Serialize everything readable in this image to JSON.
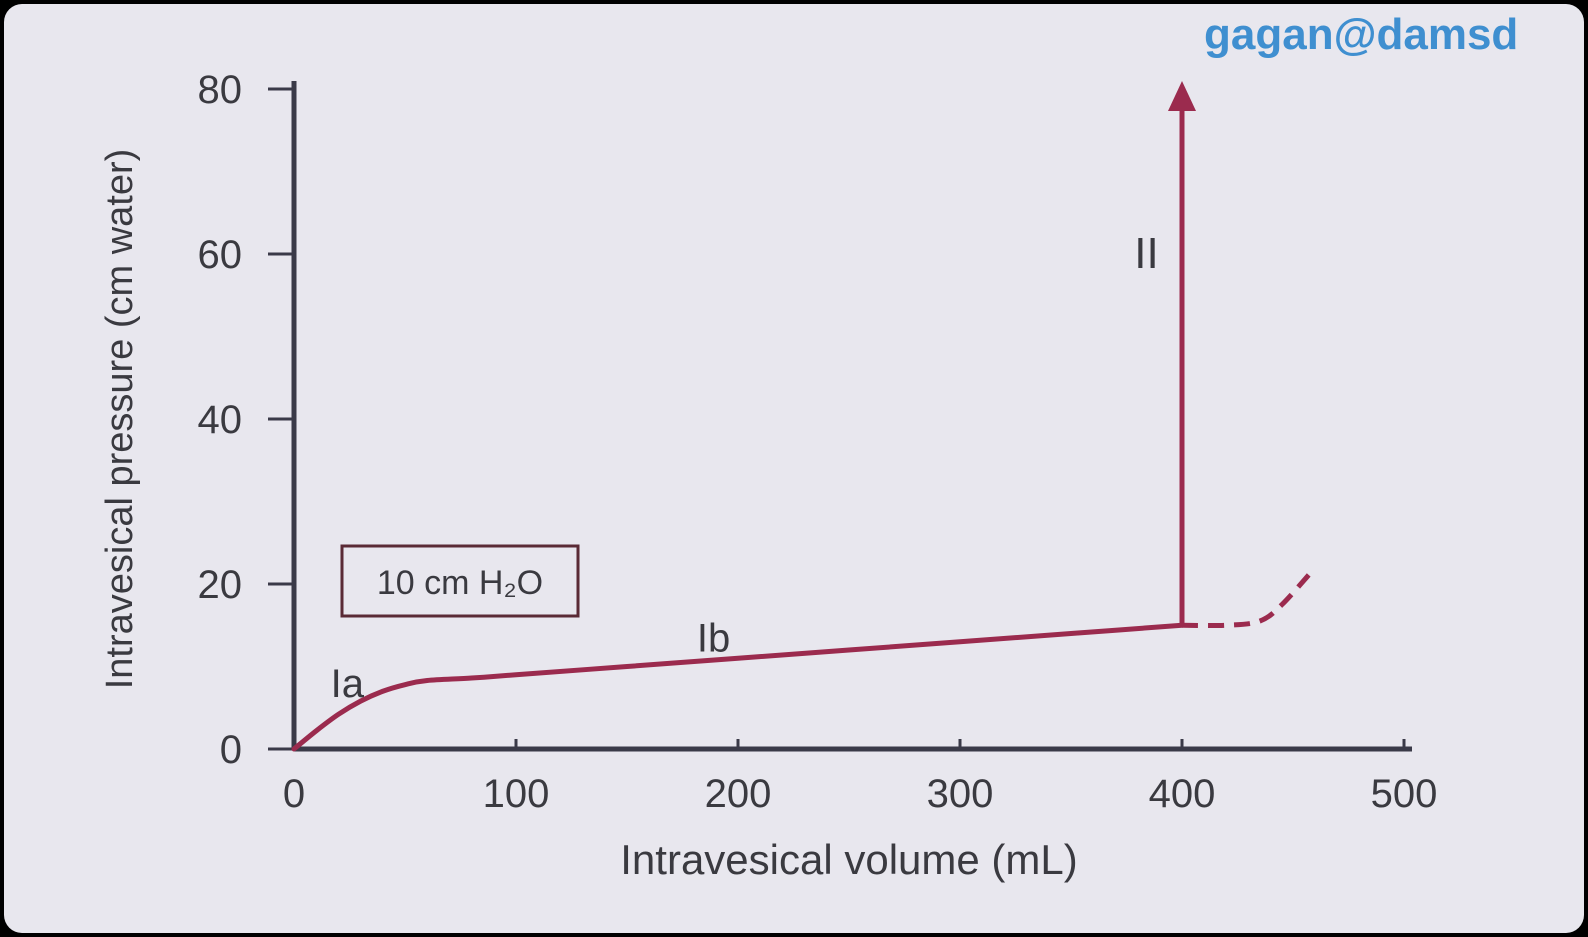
{
  "watermark": "gagan@damsd",
  "chart_data": {
    "type": "line",
    "xlabel": "Intravesical volume (mL)",
    "ylabel": "Intravesical pressure (cm water)",
    "xlim": [
      0,
      500
    ],
    "ylim": [
      0,
      80
    ],
    "x_ticks": [
      "0",
      "100",
      "200",
      "300",
      "400",
      "500"
    ],
    "y_ticks": [
      "0",
      "20",
      "40",
      "60",
      "80"
    ],
    "grid": false,
    "series": [
      {
        "values": [
          {
            "x": 0,
            "y": 0
          },
          {
            "x": 10,
            "y": 2.2
          },
          {
            "x": 20,
            "y": 4.2
          },
          {
            "x": 30,
            "y": 5.8
          },
          {
            "x": 40,
            "y": 7.0
          },
          {
            "x": 50,
            "y": 7.8
          },
          {
            "x": 60,
            "y": 8.3
          },
          {
            "x": 80,
            "y": 8.6
          },
          {
            "x": 100,
            "y": 9.0
          },
          {
            "x": 150,
            "y": 10.0
          },
          {
            "x": 200,
            "y": 11.0
          },
          {
            "x": 250,
            "y": 12.0
          },
          {
            "x": 300,
            "y": 13.0
          },
          {
            "x": 350,
            "y": 14.0
          },
          {
            "x": 400,
            "y": 15.0
          }
        ]
      }
    ],
    "extension": {
      "style": "dashed",
      "values": [
        {
          "x": 400,
          "y": 15.0
        },
        {
          "x": 420,
          "y": 15.0
        },
        {
          "x": 435,
          "y": 15.5
        },
        {
          "x": 445,
          "y": 17.5
        },
        {
          "x": 460,
          "y": 22.0
        }
      ]
    },
    "vertical_arrow": {
      "x": 400,
      "y_from": 15,
      "y_to": 80
    },
    "color": "#9b2b4e",
    "annotations": [
      {
        "text": "Ia",
        "x": 15,
        "y": 8
      },
      {
        "text": "Ib",
        "x": 180,
        "y": 13.5
      },
      {
        "text": "II",
        "x": 375,
        "y": 60
      }
    ],
    "boxed_label": "10 cm H₂O"
  }
}
